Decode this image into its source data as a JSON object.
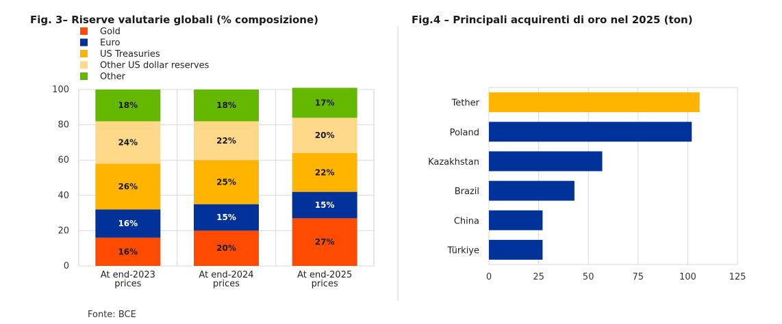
{
  "source": "Fonte: BCE",
  "chart_data": [
    {
      "type": "bar",
      "stacked": true,
      "title": "Fig. 3– Riserve valutarie globali (% composizione)",
      "categories": [
        [
          "At end-2023",
          "prices"
        ],
        [
          "At end-2024",
          "prices"
        ],
        [
          "At end-2025",
          "prices"
        ]
      ],
      "ylim": [
        0,
        100
      ],
      "yticks": [
        0,
        20,
        40,
        60,
        80,
        100
      ],
      "grid": true,
      "legend_position": "top-left",
      "series": [
        {
          "name": "Gold",
          "color": "#ff4b00",
          "values": [
            16,
            20,
            27
          ],
          "labels": [
            "16%",
            "20%",
            "27%"
          ],
          "label_color": "#1a1a1a"
        },
        {
          "name": "Euro",
          "color": "#003299",
          "values": [
            16,
            15,
            15
          ],
          "labels": [
            "16%",
            "15%",
            "15%"
          ],
          "label_color": "#ffffff"
        },
        {
          "name": "US Treasuries",
          "color": "#ffb400",
          "values": [
            26,
            25,
            22
          ],
          "labels": [
            "26%",
            "25%",
            "22%"
          ],
          "label_color": "#1a1a1a"
        },
        {
          "name": "Other US dollar reserves",
          "color": "#ffd98a",
          "values": [
            24,
            22,
            20
          ],
          "labels": [
            "24%",
            "22%",
            "20%"
          ],
          "label_color": "#1a1a1a"
        },
        {
          "name": "Other",
          "color": "#65b800",
          "values": [
            18,
            18,
            17
          ],
          "labels": [
            "18%",
            "18%",
            "17%"
          ],
          "label_color": "#1a1a1a"
        }
      ]
    },
    {
      "type": "bar",
      "orientation": "horizontal",
      "title": "Fig.4 – Principali acquirenti di oro nel 2025 (ton)",
      "categories": [
        "Tether",
        "Poland",
        "Kazakhstan",
        "Brazil",
        "China",
        "Türkiye"
      ],
      "values": [
        106,
        102,
        57,
        43,
        27,
        27
      ],
      "colors": [
        "#ffb400",
        "#003299",
        "#003299",
        "#003299",
        "#003299",
        "#003299"
      ],
      "xlim": [
        0,
        125
      ],
      "xticks": [
        0,
        25,
        50,
        75,
        100,
        125
      ],
      "grid": true
    }
  ]
}
